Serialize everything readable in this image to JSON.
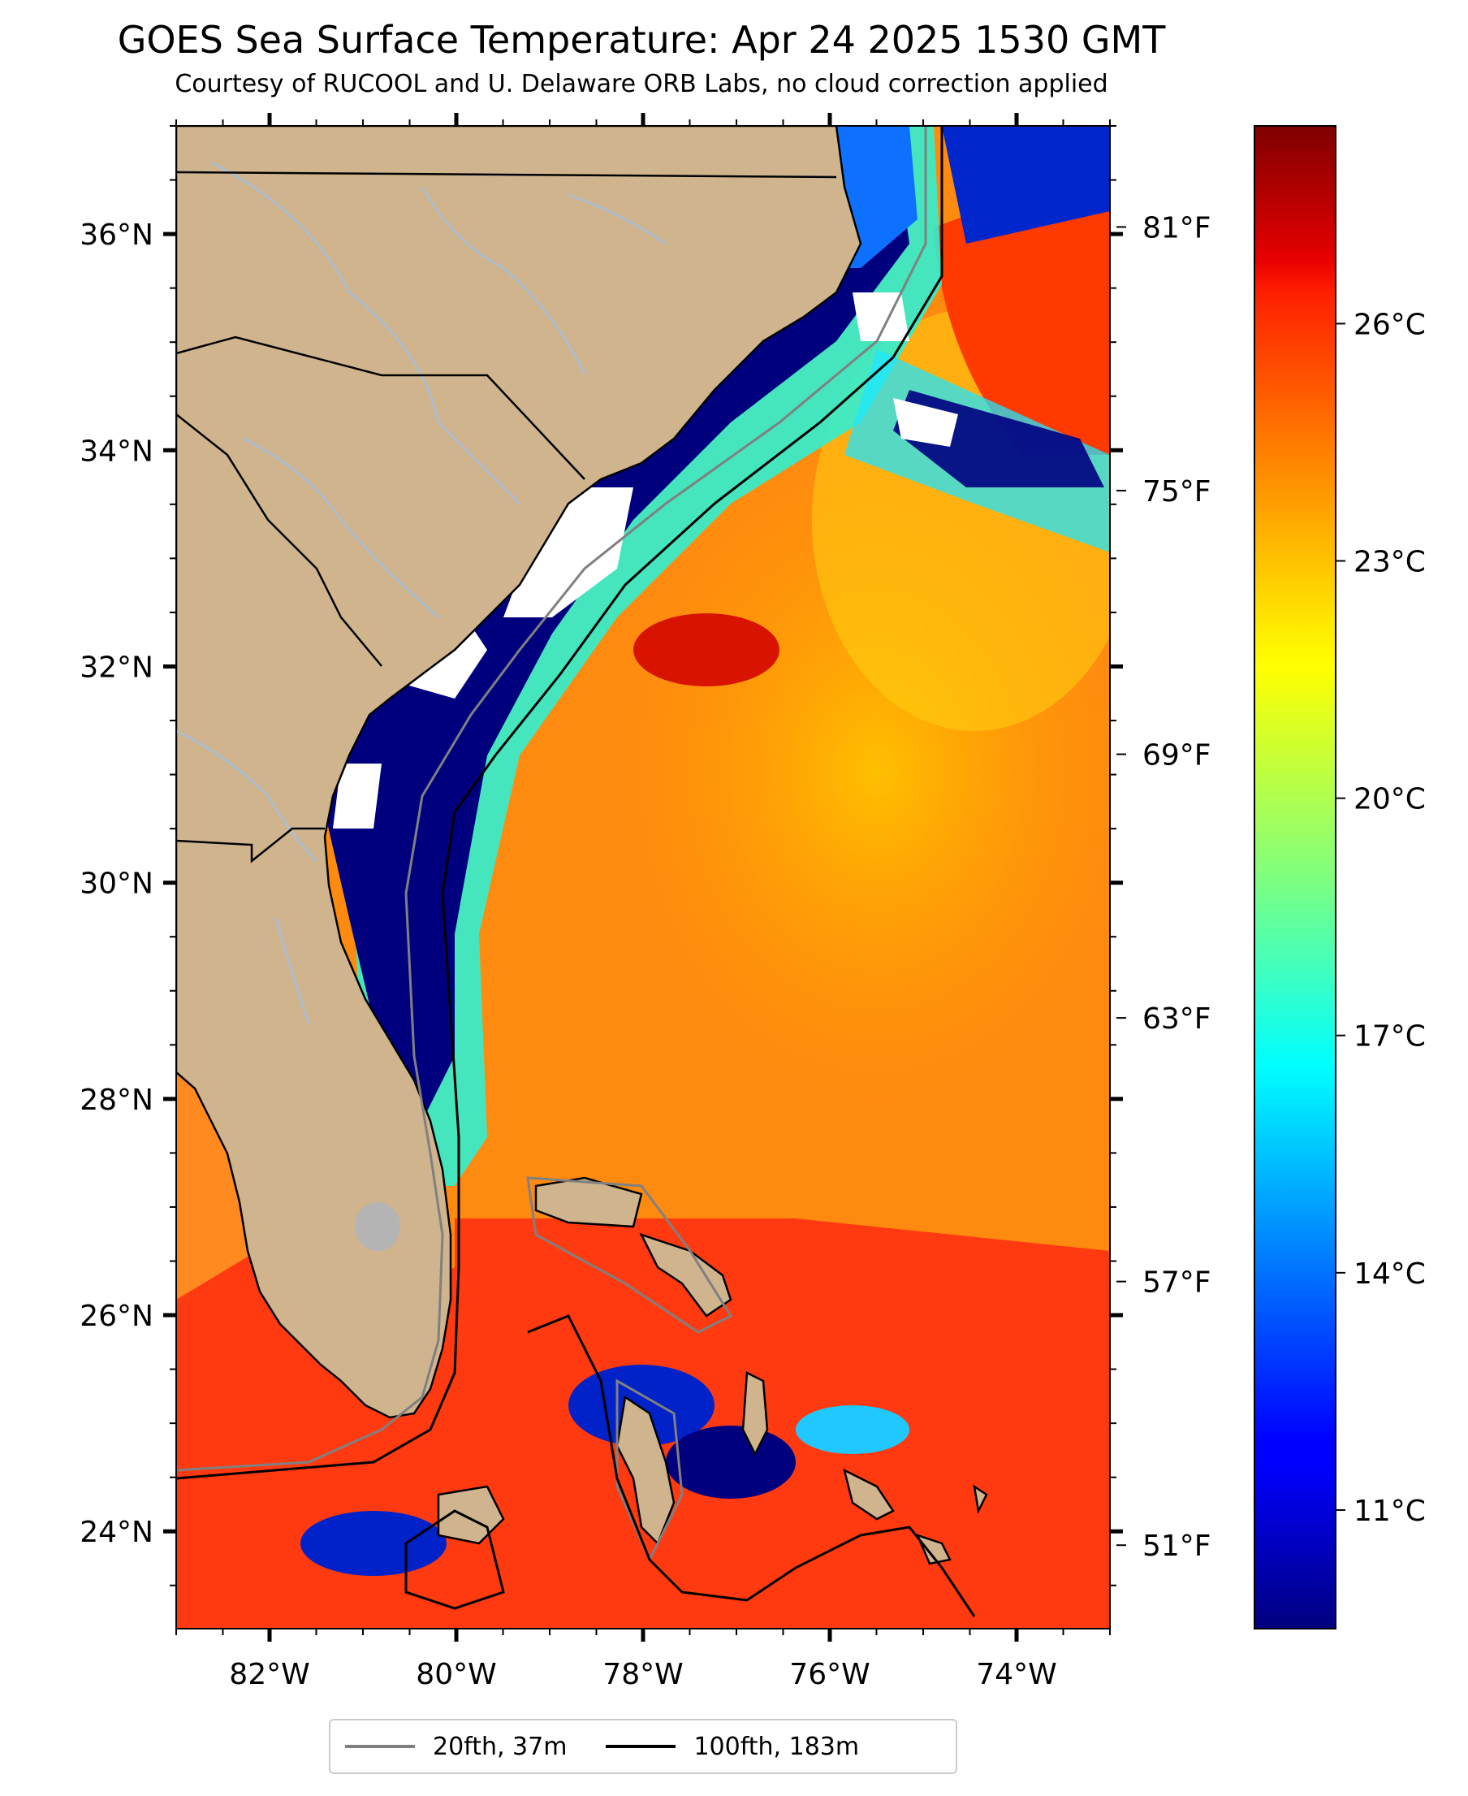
{
  "header": {
    "title": "GOES Sea Surface Temperature: Apr 24 2025 1530 GMT",
    "subtitle": "Courtesy of RUCOOL and U. Delaware ORB Labs, no cloud correction applied"
  },
  "map": {
    "lon_range": [
      -83,
      -73
    ],
    "lat_range": [
      23.1,
      37.0
    ],
    "lon_ticks": [
      {
        "value": -82,
        "label": "82°W"
      },
      {
        "value": -80,
        "label": "80°W"
      },
      {
        "value": -78,
        "label": "78°W"
      },
      {
        "value": -76,
        "label": "76°W"
      },
      {
        "value": -74,
        "label": "74°W"
      }
    ],
    "lat_ticks": [
      {
        "value": 24,
        "label": "24°N"
      },
      {
        "value": 26,
        "label": "26°N"
      },
      {
        "value": 28,
        "label": "28°N"
      },
      {
        "value": 30,
        "label": "30°N"
      },
      {
        "value": 32,
        "label": "32°N"
      },
      {
        "value": 34,
        "label": "34°N"
      },
      {
        "value": 36,
        "label": "36°N"
      }
    ],
    "colors": {
      "land": "#cfb48e",
      "cloud_mask": "#ffffff",
      "inland_water": "#a8bfd9",
      "isobath_20fth": "#808080",
      "isobath_100fth": "#000000"
    }
  },
  "colorbar": {
    "colormap": "jet",
    "range_c": [
      9.5,
      28.5
    ],
    "celsius_ticks": [
      {
        "value": 11,
        "label": "11°C"
      },
      {
        "value": 14,
        "label": "14°C"
      },
      {
        "value": 17,
        "label": "17°C"
      },
      {
        "value": 20,
        "label": "20°C"
      },
      {
        "value": 23,
        "label": "23°C"
      },
      {
        "value": 26,
        "label": "26°C"
      }
    ],
    "fahrenheit_ticks": [
      {
        "value": 51,
        "label": "51°F"
      },
      {
        "value": 57,
        "label": "57°F"
      },
      {
        "value": 63,
        "label": "63°F"
      },
      {
        "value": 69,
        "label": "69°F"
      },
      {
        "value": 75,
        "label": "75°F"
      },
      {
        "value": 81,
        "label": "81°F"
      }
    ]
  },
  "legend": {
    "items": [
      {
        "label": "20fth, 37m",
        "color": "#808080"
      },
      {
        "label": "100fth, 183m",
        "color": "#000000"
      }
    ]
  }
}
